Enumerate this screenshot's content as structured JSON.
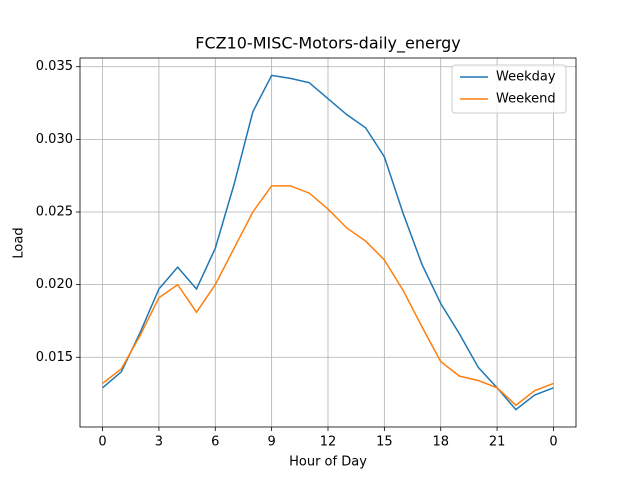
{
  "chart_data": {
    "type": "line",
    "title": "FCZ10-MISC-Motors-daily_energy",
    "x_label": "Hour of Day",
    "y_label": "Load",
    "x": [
      0,
      1,
      2,
      3,
      4,
      5,
      6,
      7,
      8,
      9,
      10,
      11,
      12,
      13,
      14,
      15,
      16,
      17,
      18,
      19,
      20,
      21,
      22,
      23,
      24
    ],
    "series": [
      {
        "name": "Weekday",
        "color": "#1f77b4",
        "values": [
          0.0129,
          0.014,
          0.0167,
          0.0197,
          0.0212,
          0.0197,
          0.0225,
          0.0269,
          0.0319,
          0.0344,
          0.0342,
          0.0339,
          0.0328,
          0.0317,
          0.0308,
          0.0288,
          0.0249,
          0.0214,
          0.0187,
          0.0166,
          0.0143,
          0.0129,
          0.0114,
          0.0124,
          0.0129
        ]
      },
      {
        "name": "Weekend",
        "color": "#ff7f0e",
        "values": [
          0.0132,
          0.0142,
          0.0165,
          0.0191,
          0.02,
          0.0181,
          0.02,
          0.0225,
          0.025,
          0.0268,
          0.0268,
          0.0263,
          0.0252,
          0.0239,
          0.023,
          0.0217,
          0.0196,
          0.0171,
          0.0147,
          0.0137,
          0.0134,
          0.0129,
          0.0117,
          0.0127,
          0.0132
        ]
      }
    ],
    "xlim": [
      -1.2,
      25.2
    ],
    "ylim": [
      0.0102,
      0.0356
    ],
    "xticks": [
      0,
      3,
      6,
      9,
      12,
      15,
      18,
      21,
      {
        "value": 24,
        "label": "0"
      }
    ],
    "yticks": [
      0.015,
      {
        "value": 0.02,
        "label": "0.020"
      },
      0.025,
      {
        "value": 0.03,
        "label": "0.030"
      },
      0.035
    ],
    "grid": true,
    "legend": "upper right"
  }
}
